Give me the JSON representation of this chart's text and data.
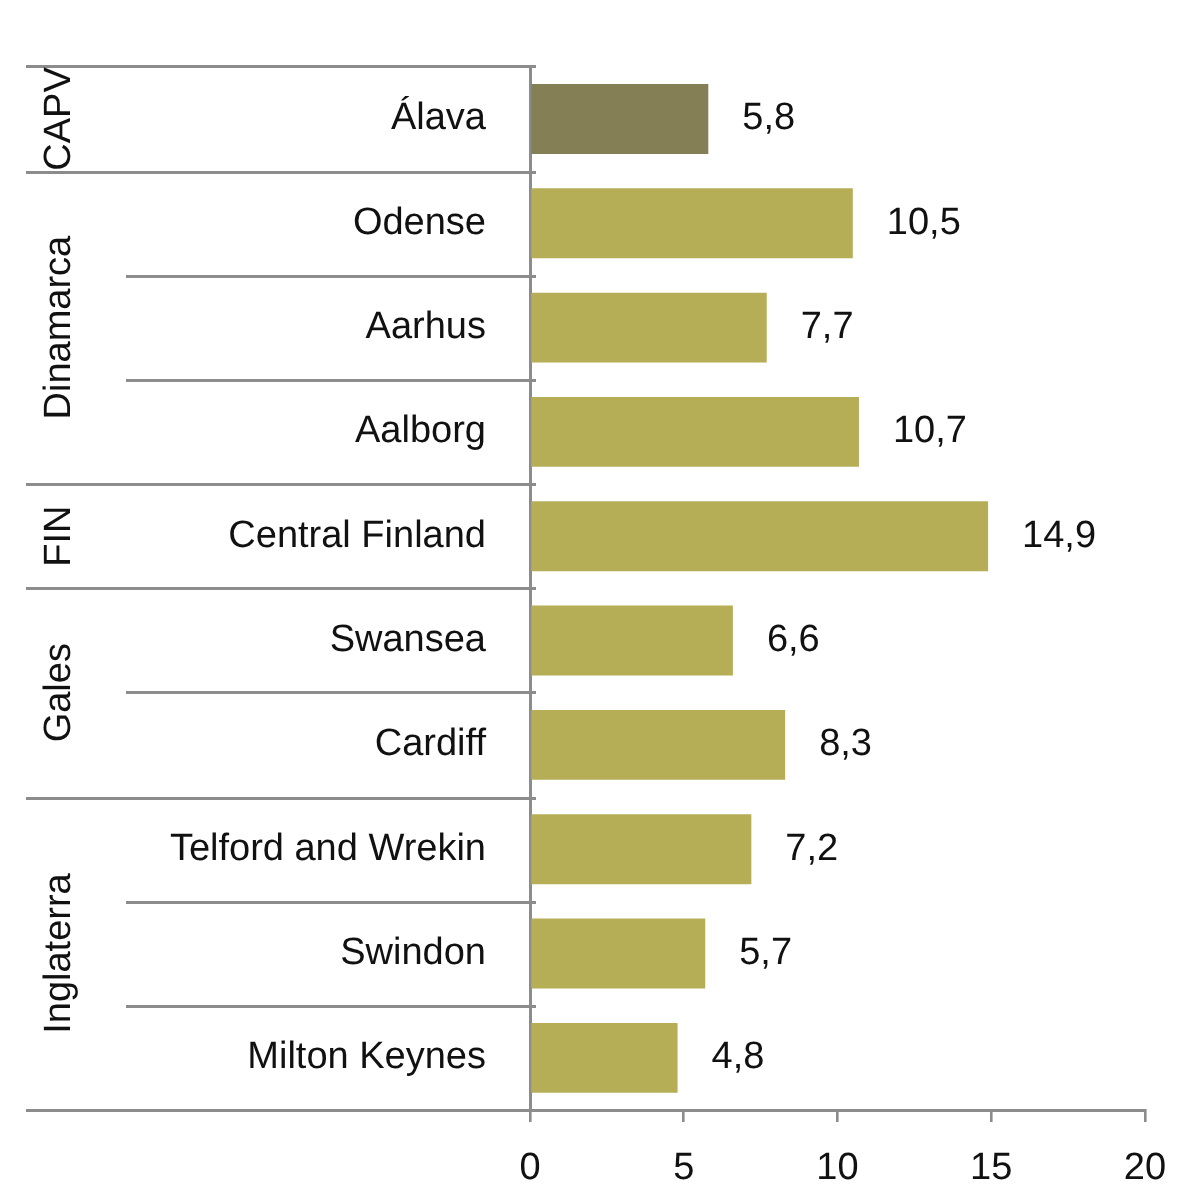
{
  "chart_data": {
    "type": "bar",
    "orientation": "horizontal",
    "categories": [
      "Álava",
      "Odense",
      "Aarhus",
      "Aalborg",
      "Central Finland",
      "Swansea",
      "Cardiff",
      "Telford and Wrekin",
      "Swindon",
      "Milton Keynes"
    ],
    "values": [
      5.8,
      10.5,
      7.7,
      10.7,
      14.9,
      6.6,
      8.3,
      7.2,
      5.7,
      4.8
    ],
    "value_labels": [
      "5,8",
      "10,5",
      "7,7",
      "10,7",
      "14,9",
      "6,6",
      "8,3",
      "7,2",
      "5,7",
      "4,8"
    ],
    "colors": [
      "#857f55",
      "#b5ae57",
      "#b5ae57",
      "#b5ae57",
      "#b5ae57",
      "#b5ae57",
      "#b5ae57",
      "#b5ae57",
      "#b5ae57",
      "#b5ae57"
    ],
    "xlim": [
      0,
      20
    ],
    "xticks": [
      0,
      5,
      10,
      15,
      20
    ],
    "annotations": [
      "CAPV",
      "Dinamarca",
      "FIN",
      "Gales",
      "Inglaterra"
    ]
  }
}
